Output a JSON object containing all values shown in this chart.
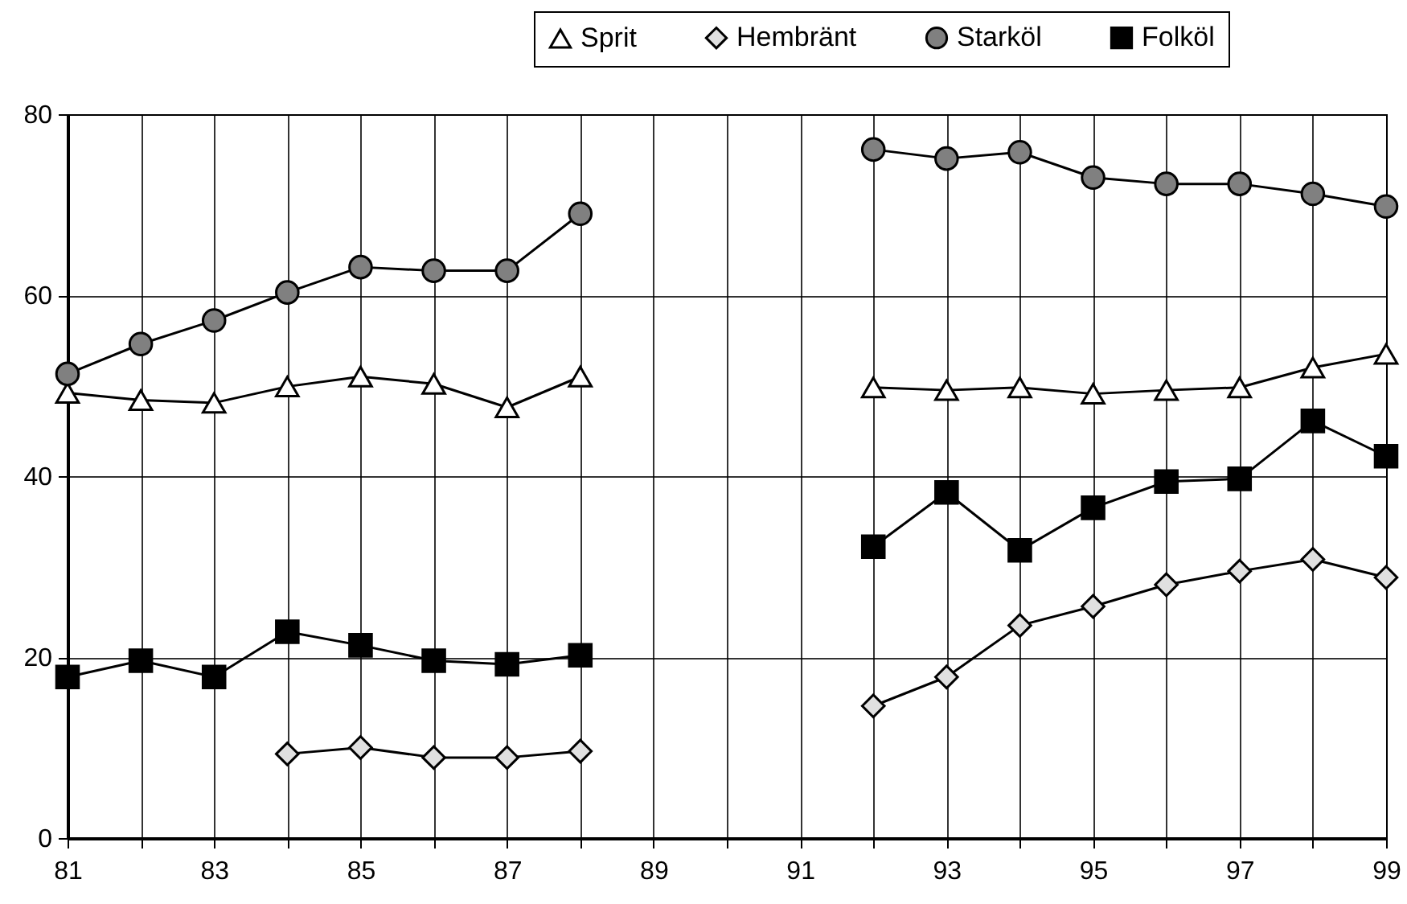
{
  "chart_data": {
    "type": "line",
    "x": [
      81,
      82,
      83,
      84,
      85,
      86,
      87,
      88,
      89,
      90,
      91,
      92,
      93,
      94,
      95,
      96,
      97,
      98,
      99
    ],
    "series": [
      {
        "name": "Sprit",
        "color": "#ffffff",
        "marker": "triangle",
        "values": [
          49.2,
          48.4,
          48.1,
          49.9,
          51.0,
          50.2,
          47.6,
          51.0,
          null,
          null,
          null,
          49.8,
          49.5,
          49.8,
          49.1,
          49.5,
          49.8,
          52.0,
          53.5
        ]
      },
      {
        "name": "Hembränt",
        "color": "#e0e0e0",
        "marker": "diamond",
        "values": [
          null,
          null,
          null,
          9.3,
          10.0,
          8.9,
          8.9,
          9.6,
          null,
          null,
          null,
          14.6,
          17.8,
          23.5,
          25.6,
          28.0,
          29.5,
          30.8,
          28.8
        ]
      },
      {
        "name": "Starköl",
        "color": "#808080",
        "marker": "circle",
        "values": [
          51.3,
          54.6,
          57.2,
          60.3,
          63.1,
          62.7,
          62.7,
          69.0,
          null,
          null,
          null,
          76.1,
          75.1,
          75.8,
          73.0,
          72.3,
          72.3,
          71.2,
          69.8
        ]
      },
      {
        "name": "Folköl",
        "color": "#000000",
        "marker": "square",
        "values": [
          17.8,
          19.6,
          17.8,
          22.8,
          21.3,
          19.6,
          19.2,
          20.2,
          null,
          null,
          null,
          32.2,
          38.2,
          31.8,
          36.5,
          39.4,
          39.7,
          46.1,
          42.2
        ]
      }
    ],
    "xlim": [
      81,
      99
    ],
    "xticks": [
      81,
      {
        "value": 82,
        "label": null
      },
      83,
      {
        "value": 84,
        "label": null
      },
      85,
      {
        "value": 86,
        "label": null
      },
      87,
      {
        "value": 88,
        "label": null
      },
      89,
      {
        "value": 90,
        "label": null
      },
      91,
      {
        "value": 92,
        "label": null
      },
      93,
      {
        "value": 94,
        "label": null
      },
      95,
      {
        "value": 96,
        "label": null
      },
      97,
      {
        "value": 98,
        "label": null
      },
      99
    ],
    "ylim": [
      0,
      80
    ],
    "yticks": [
      0,
      20,
      40,
      60,
      80
    ],
    "grid": true,
    "legend": "top right",
    "line_style": "solid"
  }
}
